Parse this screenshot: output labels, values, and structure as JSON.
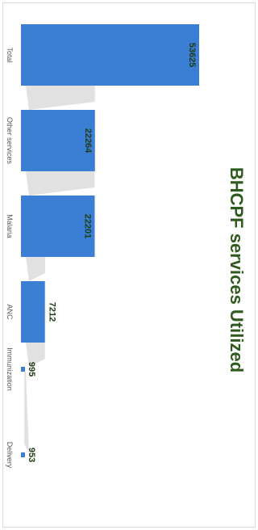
{
  "chart_data": {
    "type": "bar",
    "orientation": "horizontal",
    "title": "BHCPF services Utilized",
    "categories": [
      "Total",
      "Other services",
      "Malaria",
      "ANC",
      "Immunization",
      "Delivery"
    ],
    "values": [
      53625,
      22264,
      22201,
      7212,
      995,
      953
    ],
    "xlim": [
      0,
      60000
    ],
    "grid": false,
    "legend": "none",
    "data_labels": true
  },
  "colors": {
    "bar": "#3a7fd4",
    "shadow": "#c9c9c9",
    "title": "#2f5a1e",
    "value_label": "#1f3a16",
    "category_label": "#595959"
  }
}
